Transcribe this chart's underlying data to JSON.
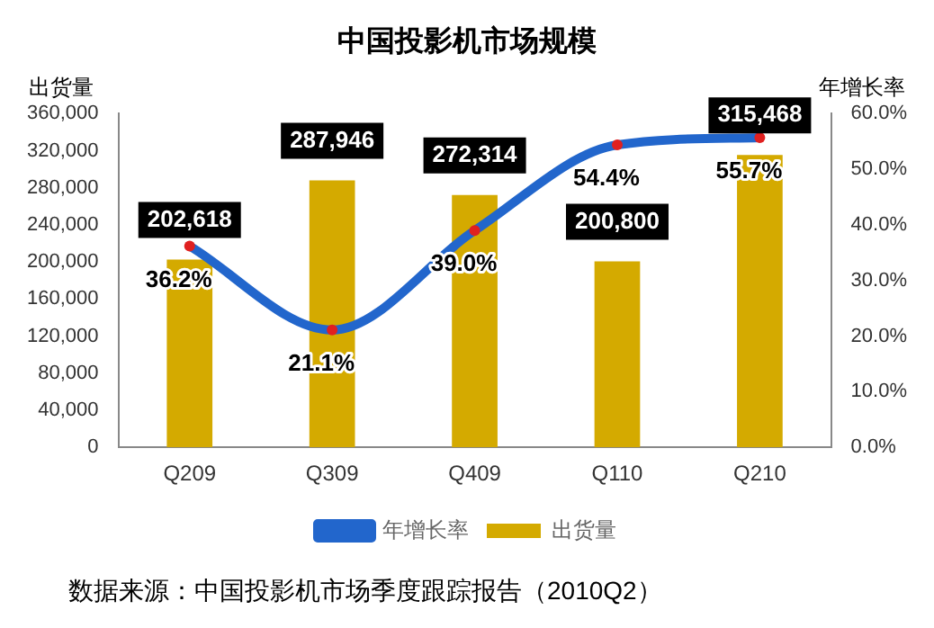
{
  "chart_data": {
    "type": "bar",
    "title": "中国投影机市场规模",
    "categories": [
      "Q209",
      "Q309",
      "Q409",
      "Q110",
      "Q210"
    ],
    "ylabel": "出货量",
    "y2label": "年增长率",
    "series": [
      {
        "name": "出货量",
        "color": "#d4aa00",
        "values": [
          202618,
          287946,
          272314,
          200800,
          315468
        ],
        "value_labels": [
          "202,618",
          "287,946",
          "272,314",
          "200,800",
          "315,468"
        ]
      },
      {
        "name": "年增长率",
        "type": "line",
        "axis": "y2",
        "color": "#2266cc",
        "values": [
          36.2,
          21.1,
          39.0,
          54.4,
          55.7
        ],
        "value_labels": [
          "36.2%",
          "21.1%",
          "39.0%",
          "54.4%",
          "55.7%"
        ]
      }
    ],
    "ylim": [
      0,
      360000
    ],
    "yticks": [
      {
        "value": 0,
        "label": "0"
      },
      {
        "value": 40000,
        "label": "40,000"
      },
      {
        "value": 80000,
        "label": "80,000"
      },
      {
        "value": 120000,
        "label": "120,000"
      },
      {
        "value": 160000,
        "label": "160,000"
      },
      {
        "value": 200000,
        "label": "200,000"
      },
      {
        "value": 240000,
        "label": "240,000"
      },
      {
        "value": 280000,
        "label": "280,000"
      },
      {
        "value": 320000,
        "label": "320,000"
      },
      {
        "value": 360000,
        "label": "360,000"
      }
    ],
    "y2lim": [
      0,
      60
    ],
    "y2ticks": [
      {
        "value": 0,
        "label": "0.0%"
      },
      {
        "value": 10,
        "label": "10.0%"
      },
      {
        "value": 20,
        "label": "20.0%"
      },
      {
        "value": 30,
        "label": "30.0%"
      },
      {
        "value": 40,
        "label": "40.0%"
      },
      {
        "value": 50,
        "label": "50.0%"
      },
      {
        "value": 60,
        "label": "60.0%"
      }
    ],
    "grid": false,
    "legend": "bottom",
    "marker": "circle",
    "annotations": [
      "数据来源：中国投影机市场季度跟踪报告（2010Q2）"
    ]
  }
}
